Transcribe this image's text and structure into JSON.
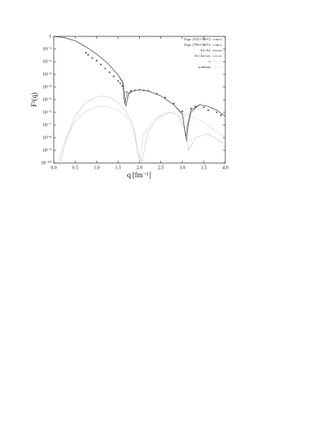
{
  "chart_data": {
    "type": "line",
    "x_label": "q [fm⁻¹]",
    "y_label": "F²(q)",
    "xlim": [
      0,
      4
    ],
    "xticks": [
      {
        "value": 0,
        "label": "0.0"
      },
      0.5,
      {
        "value": 1,
        "label": "1.0"
      },
      1.5,
      {
        "value": 2,
        "label": "2.0"
      },
      2.5,
      {
        "value": 3,
        "label": "3.0"
      },
      3.5,
      {
        "value": 4,
        "label": "4.0"
      }
    ],
    "ylim": [
      1e-10,
      1
    ],
    "log_y": true,
    "yticks": [
      1,
      {
        "value": 0.1,
        "label": "10⁻¹"
      },
      {
        "value": 0.01,
        "label": "10⁻²"
      },
      {
        "value": 0.001,
        "label": "10⁻³"
      },
      {
        "value": 0.0001,
        "label": "10⁻⁴"
      },
      {
        "value": 1e-05,
        "label": "10⁻⁵"
      },
      {
        "value": 1e-06,
        "label": "10⁻⁶"
      },
      {
        "value": 1e-07,
        "label": "10⁻⁷"
      },
      {
        "value": 1e-08,
        "label": "10⁻⁸"
      },
      {
        "value": 1e-09,
        "label": "10⁻⁹"
      },
      {
        "value": 1e-10,
        "label": "10⁻¹⁰"
      }
    ],
    "legend": "upper right",
    "series": [
      {
        "name": "Expt. (374.5 MeV)",
        "color": "#222",
        "line_style": "markers",
        "x": [
          0.75,
          0.8,
          0.9,
          1.0,
          1.1,
          1.2,
          1.3,
          1.4,
          1.5,
          1.55,
          1.6
        ],
        "values": [
          0.05,
          0.035,
          0.02,
          0.012,
          0.006,
          0.003,
          0.0015,
          0.0007,
          0.0003,
          0.0002,
          0.00012
        ]
      },
      {
        "name": "Expt. (750.0 MeV)",
        "color": "#222",
        "line_style": "markers",
        "x": [
          1.7,
          1.8,
          1.9,
          2.0,
          2.1,
          2.2,
          2.4,
          2.6,
          2.8,
          3.0,
          3.2,
          3.3,
          3.5,
          3.6,
          3.8,
          3.9
        ],
        "values": [
          4e-05,
          5e-05,
          5.5e-05,
          6e-05,
          5.5e-05,
          5e-05,
          3e-05,
          1.5e-05,
          5e-06,
          1.2e-06,
          2e-06,
          3e-06,
          2.5e-06,
          1.5e-06,
          1e-06,
          6e-07
        ]
      },
      {
        "name": "A1+A2",
        "color": "#222",
        "line_style": "solid",
        "x": [
          0,
          0.25,
          0.5,
          0.75,
          1.0,
          1.25,
          1.5,
          1.62,
          1.68,
          1.75,
          1.85,
          2.0,
          2.2,
          2.5,
          2.8,
          3.0,
          3.08,
          3.12,
          3.2,
          3.4,
          3.6,
          3.8,
          4.0
        ],
        "values": [
          1,
          0.8,
          0.45,
          0.15,
          0.04,
          0.008,
          0.0009,
          0.0002,
          3e-06,
          3e-05,
          5e-05,
          6e-05,
          5e-05,
          2e-05,
          4e-06,
          7e-07,
          1e-08,
          1e-07,
          1.5e-06,
          4e-06,
          3e-06,
          1.5e-06,
          5e-07
        ]
      },
      {
        "name": "A1+A2+ωπ",
        "color": "#555",
        "line_style": "solid",
        "x": [
          0,
          0.25,
          0.5,
          0.75,
          1.0,
          1.25,
          1.5,
          1.6,
          1.65,
          1.72,
          1.85,
          2.0,
          2.2,
          2.5,
          2.8,
          3.0,
          3.1,
          3.14,
          3.2,
          3.4,
          3.6,
          3.8,
          4.0
        ],
        "values": [
          1,
          0.8,
          0.45,
          0.15,
          0.04,
          0.008,
          0.0009,
          0.0003,
          5e-06,
          3e-05,
          5e-05,
          6e-05,
          5e-05,
          2e-05,
          4e-06,
          8e-07,
          5e-09,
          1e-07,
          1e-06,
          4e-06,
          3e-06,
          1.5e-06,
          5e-07
        ]
      },
      {
        "name": "π",
        "color": "#888",
        "line_style": "dotted",
        "x": [
          0.15,
          0.3,
          0.5,
          0.7,
          0.9,
          1.1,
          1.3,
          1.5,
          1.7,
          1.85,
          1.95,
          2.05,
          2.2,
          2.4,
          2.7,
          2.9,
          3.05,
          3.15,
          3.3,
          3.6,
          4.0
        ],
        "values": [
          1e-10,
          1e-08,
          5e-07,
          4e-06,
          1.2e-05,
          2e-05,
          1.6e-05,
          6e-06,
          1e-06,
          1e-07,
          1e-09,
          1e-10,
          3e-08,
          3e-07,
          1e-06,
          6e-07,
          5e-08,
          1e-09,
          1e-08,
          2e-08,
          3e-09
        ]
      },
      {
        "name": "ρ-meson",
        "color": "#aaa",
        "line_style": "dotted",
        "x": [
          0.1,
          0.25,
          0.5,
          0.75,
          1.0,
          1.25,
          1.5,
          1.75,
          1.9,
          2.0,
          2.1,
          2.3,
          2.6,
          2.9,
          3.2,
          3.5,
          3.8,
          4.0
        ],
        "values": [
          1e-10,
          5e-09,
          2e-07,
          1.2e-06,
          2.8e-06,
          3e-06,
          1.5e-06,
          3e-07,
          2e-08,
          1e-10,
          2e-08,
          2e-07,
          1e-06,
          1e-06,
          5e-07,
          1.5e-07,
          3e-08,
          1e-08
        ]
      }
    ]
  }
}
